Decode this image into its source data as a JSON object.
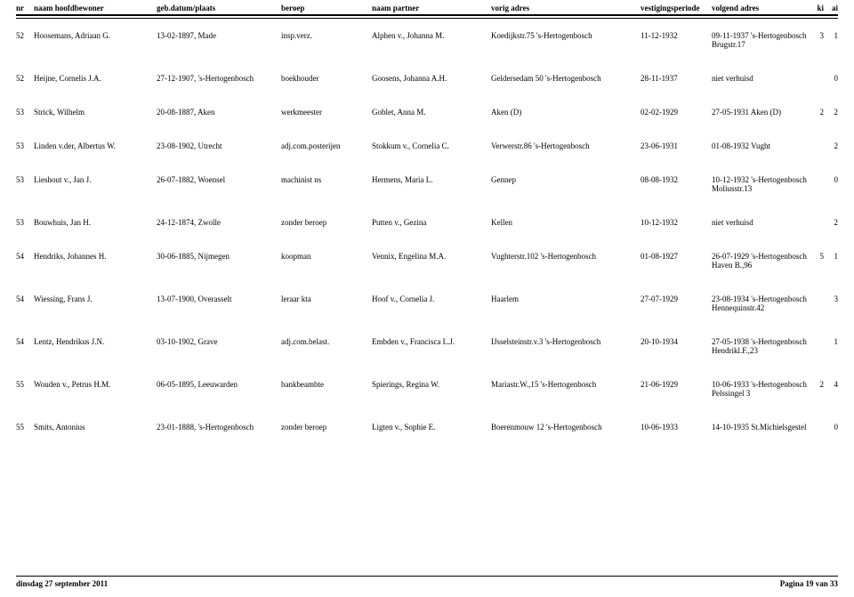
{
  "header": {
    "nr": "nr",
    "naam": "naam hoofdbewoner",
    "geb": "geb.datum/plaats",
    "beroep": "beroep",
    "partner": "naam partner",
    "vorig": "vorig adres",
    "vest": "vestigingsperiode",
    "volg": "volgend adres",
    "ki": "ki",
    "ai": "ai"
  },
  "rows": [
    {
      "nr": "52",
      "naam": "Hoosemans, Adriaan G.",
      "geb": "13-02-1897, Made",
      "beroep": "insp.verz.",
      "partner": "Alphen v., Johanna M.",
      "vorig": "Koedijkstr.75 's-Hertogenbosch",
      "vest": "11-12-1932",
      "volg": "09-11-1937 's-Hertogenbosch Brugstr.17",
      "ki": "3",
      "ai": "1"
    },
    {
      "nr": "52",
      "naam": "Heijne, Cornelis J.A.",
      "geb": "27-12-1907, 's-Hertogenbosch",
      "beroep": "boekhouder",
      "partner": "Goosens, Johanna A.H.",
      "vorig": "Geldersedam 50 's-Hertogenbosch",
      "vest": "28-11-1937",
      "volg": "niet verhuisd",
      "ki": "",
      "ai": "0"
    },
    {
      "nr": "53",
      "naam": "Strick, Wilhelm",
      "geb": "20-08-1887, Aken",
      "beroep": "werkmeester",
      "partner": "Goblet, Anna M.",
      "vorig": "Aken (D)",
      "vest": "02-02-1929",
      "volg": "27-05-1931 Aken (D)",
      "ki": "2",
      "ai": "2"
    },
    {
      "nr": "53",
      "naam": "Linden v.der, Albertus W.",
      "geb": "23-08-1902, Utrecht",
      "beroep": "adj.com.posterijen",
      "partner": "Stokkum v., Cornelia C.",
      "vorig": "Verwerstr.86 's-Hertogenbosch",
      "vest": "23-06-1931",
      "volg": "01-08-1932 Vught",
      "ki": "",
      "ai": "2"
    },
    {
      "nr": "53",
      "naam": "Lieshout v., Jan J.",
      "geb": "26-07-1882, Woensel",
      "beroep": "machinist ns",
      "partner": "Hermens, Maria L.",
      "vorig": "Gennep",
      "vest": "08-08-1932",
      "volg": "10-12-1932 's-Hertogenbosch Moliusstr.13",
      "ki": "",
      "ai": "0"
    },
    {
      "nr": "53",
      "naam": "Bouwhuis, Jan H.",
      "geb": "24-12-1874, Zwolle",
      "beroep": "zonder beroep",
      "partner": "Putten v., Gezina",
      "vorig": "Kellen",
      "vest": "10-12-1932",
      "volg": "niet verhuisd",
      "ki": "",
      "ai": "2"
    },
    {
      "nr": "54",
      "naam": "Hendriks, Johannes H.",
      "geb": "30-06-1885, Nijmegen",
      "beroep": "koopman",
      "partner": "Vennix, Engelina M.A.",
      "vorig": "Vughterstr.102 's-Hertogenbosch",
      "vest": "01-08-1927",
      "volg": "26-07-1929 's-Hertogenbosch Haven B.,96",
      "ki": "5",
      "ai": "1"
    },
    {
      "nr": "54",
      "naam": "Wiessing, Frans J.",
      "geb": "13-07-1900, Overasselt",
      "beroep": "leraar kta",
      "partner": "Hoof v., Cornelia J.",
      "vorig": "Haarlem",
      "vest": "27-07-1929",
      "volg": "23-08-1934 's-Hertogenbosch Hennequinstr.42",
      "ki": "",
      "ai": "3"
    },
    {
      "nr": "54",
      "naam": "Lentz, Hendrikus J.N.",
      "geb": "03-10-1902, Grave",
      "beroep": "adj.com.belast.",
      "partner": "Embden v., Francisca L.J.",
      "vorig": "IJsselsteinstr.v.3 's-Hertogenbosch",
      "vest": "20-10-1934",
      "volg": "27-05-1938 's-Hertogenbosch Hendrikl.F.,23",
      "ki": "",
      "ai": "1"
    },
    {
      "nr": "55",
      "naam": "Wouden v., Petrus H.M.",
      "geb": "06-05-1895, Leeuwarden",
      "beroep": "bankbeambte",
      "partner": "Spierings, Regina W.",
      "vorig": "Mariastr.W.,15 's-Hertogenbosch",
      "vest": "21-06-1929",
      "volg": "10-06-1933 's-Hertogenbosch Pelssingel 3",
      "ki": "2",
      "ai": "4"
    },
    {
      "nr": "55",
      "naam": "Smits, Antonius",
      "geb": "23-01-1888, 's-Hertogenbosch",
      "beroep": "zonder beroep",
      "partner": "Ligten v., Sophie E.",
      "vorig": "Boerenmouw 12 's-Hertogenbosch",
      "vest": "10-06-1933",
      "volg": "14-10-1935 St.Michielsgestel",
      "ki": "",
      "ai": "0"
    }
  ],
  "footer": {
    "date": "dinsdag 27 september 2011",
    "page": "Pagina 19 van 33"
  }
}
